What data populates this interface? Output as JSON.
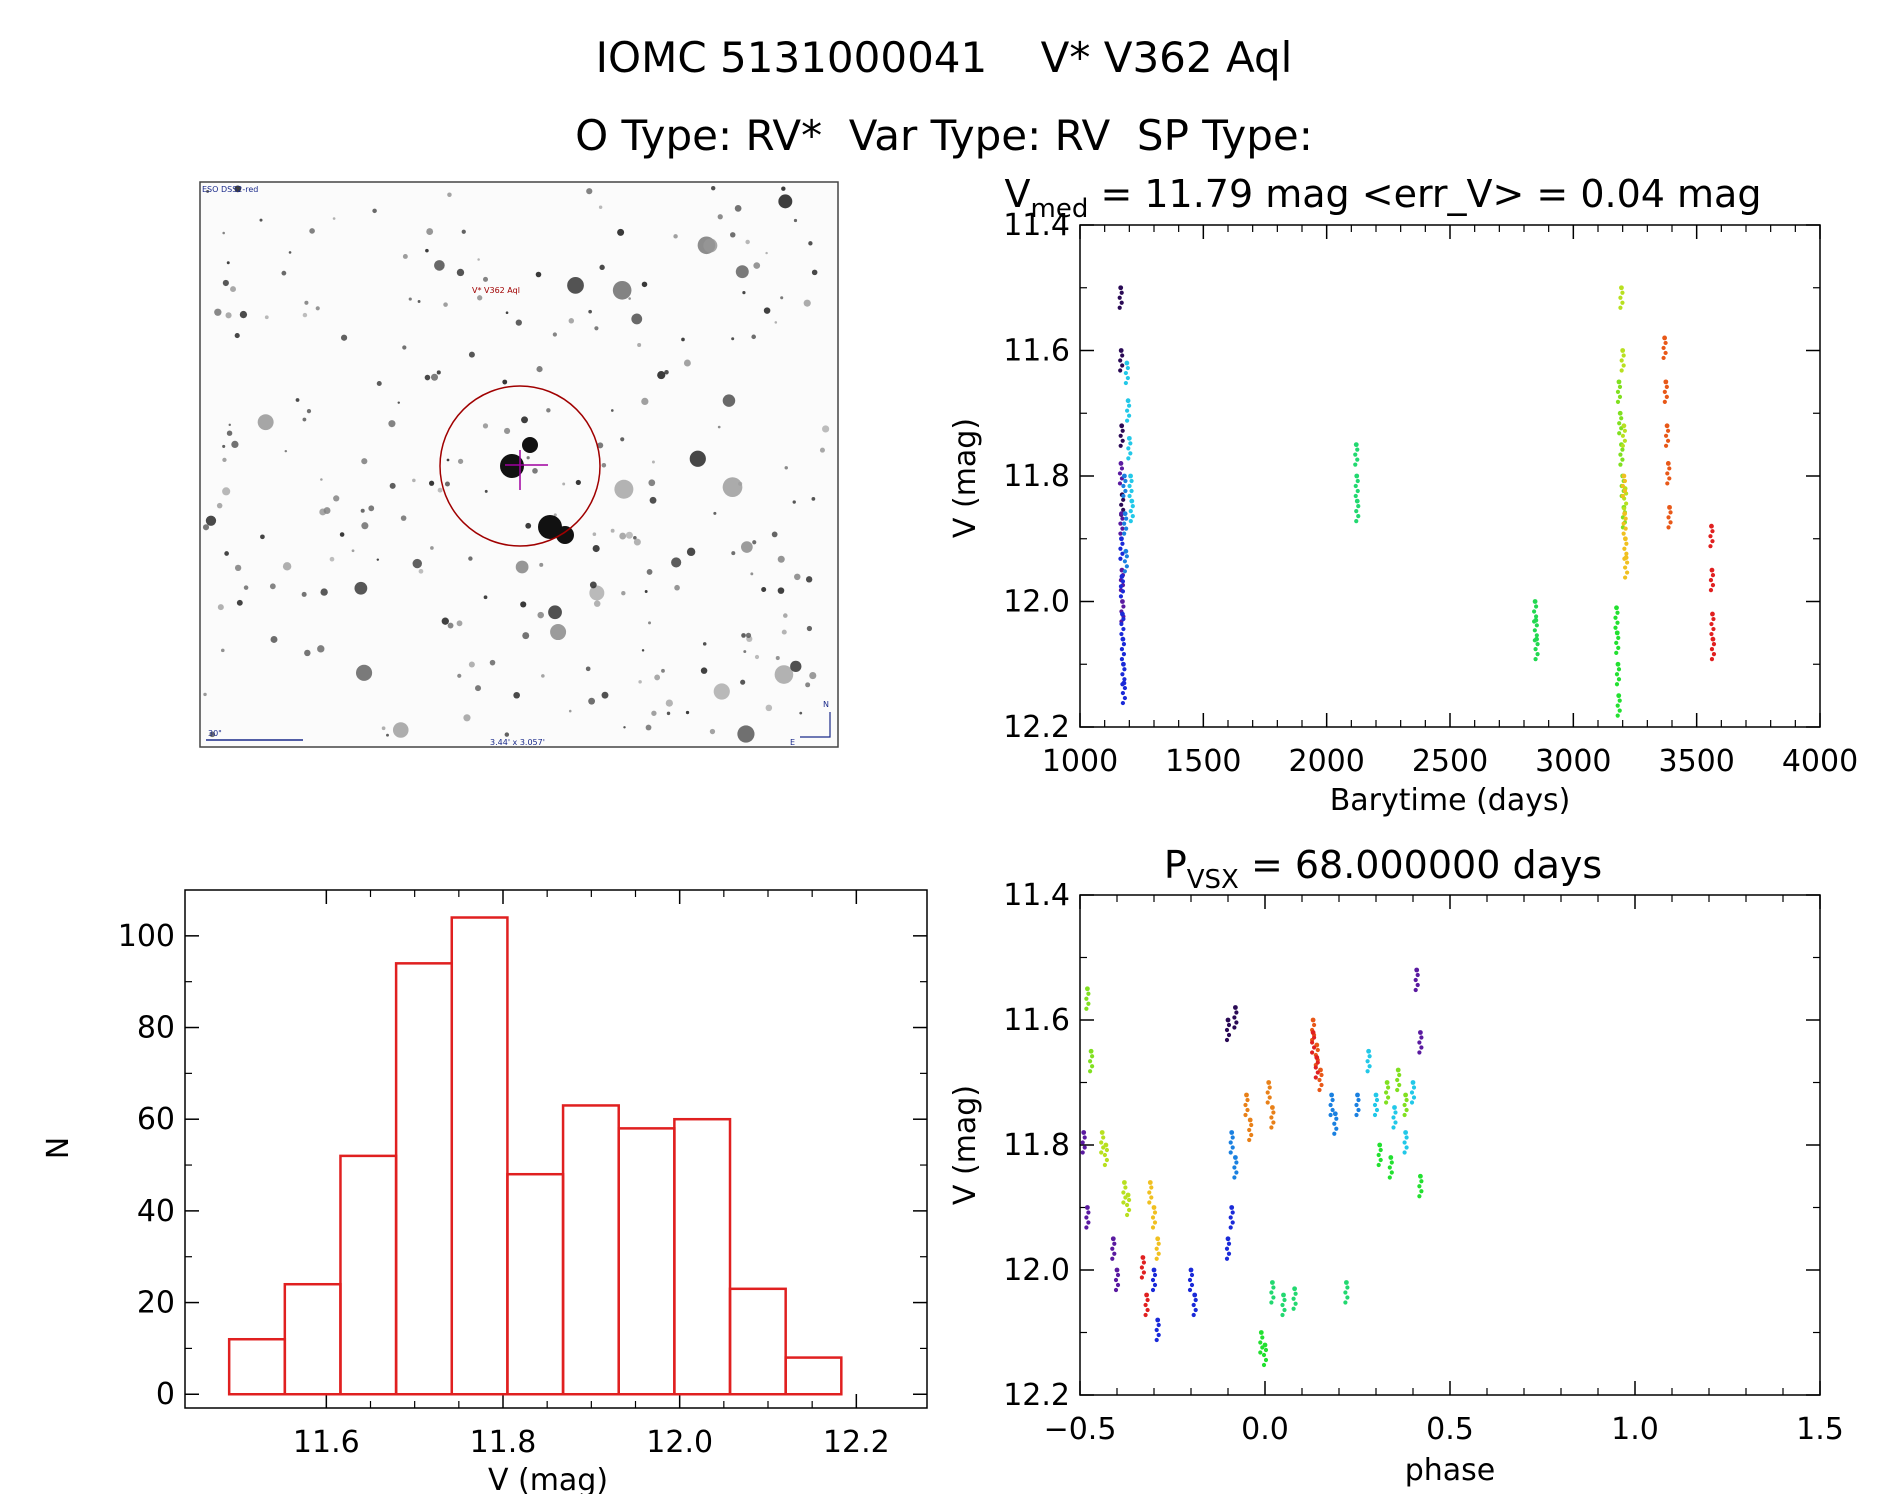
{
  "header": {
    "line1": "IOMC 5131000041    V* V362 Aql",
    "line2": "O Type: RV*  Var Type: RV  SP Type:"
  },
  "finder": {
    "survey_label": "ESO DSS2-red",
    "target_label": "V* V362 Aql",
    "scale_label": "30\"",
    "fov_label": "3.44' x 3.057'",
    "north_label": "N",
    "east_label": "E"
  },
  "chart_data": [
    {
      "id": "light-curve",
      "type": "scatter",
      "title_main": "V",
      "title_sub": "med",
      "title_rest": " = 11.79 mag <err_V> = 0.04 mag",
      "xlabel": "Barytime (days)",
      "ylabel": "V (mag)",
      "xlim": [
        1000,
        4000
      ],
      "ylim": [
        12.2,
        11.4
      ],
      "y_inverted": true,
      "xticks": [
        "1000",
        "1500",
        "2000",
        "2500",
        "3000",
        "3500",
        "4000"
      ],
      "yticks": [
        "11.4",
        "11.6",
        "11.8",
        "12.0",
        "12.2"
      ],
      "groups": [
        {
          "color": "#2a0a55",
          "x": [
            1165,
            1167,
            1169,
            1171
          ],
          "y": [
            11.5,
            11.6,
            11.72,
            11.83
          ]
        },
        {
          "color": "#5a1aa0",
          "x": [
            1166,
            1168,
            1170,
            1172
          ],
          "y": [
            11.78,
            11.86,
            11.95,
            12.0
          ]
        },
        {
          "color": "#1a2ad8",
          "x": [
            1168,
            1170,
            1172,
            1174,
            1176,
            1178
          ],
          "y": [
            11.9,
            11.96,
            12.02,
            12.06,
            12.1,
            12.13
          ]
        },
        {
          "color": "#1a80e0",
          "x": [
            1180,
            1183,
            1186
          ],
          "y": [
            11.8,
            11.86,
            11.92
          ]
        },
        {
          "color": "#22c8e8",
          "x": [
            1190,
            1195,
            1200,
            1205,
            1210
          ],
          "y": [
            11.62,
            11.68,
            11.74,
            11.8,
            11.84
          ]
        },
        {
          "color": "#22d870",
          "x": [
            2120,
            2122,
            2124
          ],
          "y": [
            11.75,
            11.8,
            11.84
          ]
        },
        {
          "color": "#22d850",
          "x": [
            2845,
            2848,
            2851
          ],
          "y": [
            12.0,
            12.03,
            12.06
          ]
        },
        {
          "color": "#22e030",
          "x": [
            3175,
            3178,
            3181,
            3184
          ],
          "y": [
            12.01,
            12.05,
            12.1,
            12.15
          ]
        },
        {
          "color": "#80e020",
          "x": [
            3185,
            3190,
            3195,
            3200,
            3205
          ],
          "y": [
            11.65,
            11.7,
            11.75,
            11.8,
            11.85
          ]
        },
        {
          "color": "#b8e020",
          "x": [
            3195,
            3200,
            3205,
            3210
          ],
          "y": [
            11.5,
            11.6,
            11.72,
            11.82
          ]
        },
        {
          "color": "#f0c020",
          "x": [
            3205,
            3208,
            3211,
            3214
          ],
          "y": [
            11.8,
            11.86,
            11.9,
            11.93
          ]
        },
        {
          "color": "#e85818",
          "x": [
            3370,
            3375,
            3380,
            3385,
            3390
          ],
          "y": [
            11.58,
            11.65,
            11.72,
            11.78,
            11.85
          ]
        },
        {
          "color": "#e02020",
          "x": [
            3560,
            3562,
            3564,
            3566
          ],
          "y": [
            11.88,
            11.95,
            12.02,
            12.06
          ]
        }
      ]
    },
    {
      "id": "histogram",
      "type": "bar",
      "xlabel": "V (mag)",
      "ylabel": "N",
      "xlim": [
        11.44,
        12.28
      ],
      "ylim": [
        -3,
        110
      ],
      "xticks": [
        "11.6",
        "11.8",
        "12.0",
        "12.2"
      ],
      "yticks": [
        "0",
        "20",
        "40",
        "60",
        "80",
        "100"
      ],
      "color": "#e02020",
      "bins": [
        {
          "left": 11.49,
          "right": 11.553,
          "value": 12
        },
        {
          "left": 11.553,
          "right": 11.616,
          "value": 24
        },
        {
          "left": 11.616,
          "right": 11.679,
          "value": 52
        },
        {
          "left": 11.679,
          "right": 11.742,
          "value": 94
        },
        {
          "left": 11.742,
          "right": 11.805,
          "value": 104
        },
        {
          "left": 11.805,
          "right": 11.868,
          "value": 48
        },
        {
          "left": 11.868,
          "right": 11.931,
          "value": 63
        },
        {
          "left": 11.931,
          "right": 11.994,
          "value": 58
        },
        {
          "left": 11.994,
          "right": 12.057,
          "value": 60
        },
        {
          "left": 12.057,
          "right": 12.12,
          "value": 23
        },
        {
          "left": 12.12,
          "right": 12.183,
          "value": 8
        }
      ]
    },
    {
      "id": "phased-curve",
      "type": "scatter",
      "title_main": "P",
      "title_sub": "VSX",
      "title_rest": " = 68.000000 days",
      "xlabel": "phase",
      "ylabel": "V (mag)",
      "xlim": [
        -0.5,
        1.5
      ],
      "ylim": [
        12.2,
        11.4
      ],
      "y_inverted": true,
      "xticks": [
        "−0.5",
        "0.0",
        "0.5",
        "1.0",
        "1.5"
      ],
      "yticks": [
        "11.4",
        "11.6",
        "11.8",
        "12.0",
        "12.2"
      ],
      "groups": [
        {
          "color": "#2a0a55",
          "x": [
            -0.1,
            -0.08
          ],
          "y": [
            11.6,
            11.58
          ]
        },
        {
          "color": "#5a1aa0",
          "x": [
            -0.49,
            -0.48,
            -0.41,
            -0.4,
            0.41,
            0.42
          ],
          "y": [
            11.78,
            11.9,
            11.95,
            12.0,
            11.52,
            11.62
          ]
        },
        {
          "color": "#1a2ad8",
          "x": [
            -0.3,
            -0.29,
            -0.2,
            -0.19,
            -0.1,
            -0.09
          ],
          "y": [
            12.0,
            12.08,
            12.0,
            12.04,
            11.95,
            11.9
          ]
        },
        {
          "color": "#1a80e0",
          "x": [
            -0.09,
            -0.08,
            0.18,
            0.19,
            0.25
          ],
          "y": [
            11.78,
            11.82,
            11.72,
            11.75,
            11.72
          ]
        },
        {
          "color": "#22c8e8",
          "x": [
            0.28,
            0.3,
            0.35,
            0.38,
            0.4
          ],
          "y": [
            11.65,
            11.72,
            11.74,
            11.78,
            11.7
          ]
        },
        {
          "color": "#22d870",
          "x": [
            0.02,
            0.05,
            0.08,
            0.22
          ],
          "y": [
            12.02,
            12.04,
            12.03,
            12.02
          ]
        },
        {
          "color": "#22e030",
          "x": [
            -0.01,
            0.0,
            0.31,
            0.34,
            0.42
          ],
          "y": [
            12.1,
            12.12,
            11.8,
            11.82,
            11.85
          ]
        },
        {
          "color": "#80e020",
          "x": [
            -0.48,
            -0.47,
            0.33,
            0.36,
            0.38
          ],
          "y": [
            11.55,
            11.65,
            11.7,
            11.68,
            11.72
          ]
        },
        {
          "color": "#b8e020",
          "x": [
            -0.44,
            -0.43,
            -0.38,
            -0.37
          ],
          "y": [
            11.78,
            11.8,
            11.86,
            11.88
          ]
        },
        {
          "color": "#f0c020",
          "x": [
            -0.31,
            -0.3,
            -0.29
          ],
          "y": [
            11.86,
            11.9,
            11.95
          ]
        },
        {
          "color": "#e88018",
          "x": [
            -0.05,
            -0.04,
            0.01,
            0.02
          ],
          "y": [
            11.72,
            11.76,
            11.7,
            11.74
          ]
        },
        {
          "color": "#e85818",
          "x": [
            0.13,
            0.14,
            0.15
          ],
          "y": [
            11.6,
            11.64,
            11.68
          ]
        },
        {
          "color": "#e02020",
          "x": [
            -0.33,
            -0.32,
            0.13,
            0.14
          ],
          "y": [
            11.98,
            12.04,
            11.62,
            11.66
          ]
        }
      ]
    }
  ]
}
